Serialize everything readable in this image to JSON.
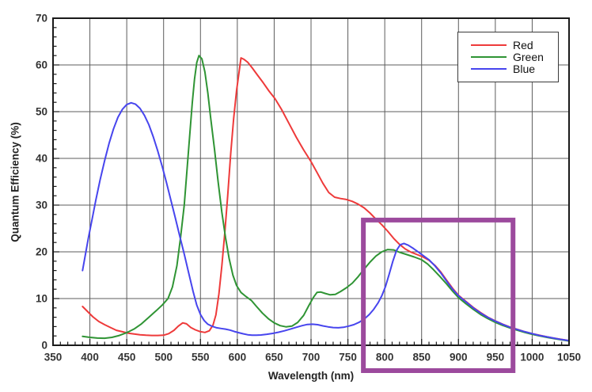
{
  "chart_data": {
    "type": "line",
    "title": "",
    "xlabel": "Wavelength (nm)",
    "ylabel": "Quantum Efficiency (%)",
    "xlim": [
      350,
      1050
    ],
    "ylim": [
      0,
      70
    ],
    "x_ticks": [
      350,
      400,
      450,
      500,
      550,
      600,
      650,
      700,
      750,
      800,
      850,
      900,
      950,
      1000,
      1050
    ],
    "y_ticks": [
      0,
      10,
      20,
      30,
      40,
      50,
      60,
      70
    ],
    "x_minor_tick_step": 10,
    "y_minor_tick_step": 2,
    "grid": "major gridlines on, dark gray",
    "legend": {
      "position": "top-right",
      "entries": [
        "Red",
        "Green",
        "Blue"
      ]
    },
    "series": [
      {
        "name": "Red",
        "color": "#ee3a3a",
        "points": [
          [
            390,
            8.3
          ],
          [
            397,
            7.2
          ],
          [
            404,
            6.1
          ],
          [
            412,
            5.1
          ],
          [
            420,
            4.4
          ],
          [
            428,
            3.8
          ],
          [
            436,
            3.2
          ],
          [
            444,
            2.9
          ],
          [
            452,
            2.6
          ],
          [
            460,
            2.4
          ],
          [
            468,
            2.25
          ],
          [
            476,
            2.15
          ],
          [
            484,
            2.1
          ],
          [
            492,
            2.1
          ],
          [
            500,
            2.15
          ],
          [
            507,
            2.5
          ],
          [
            514,
            3.2
          ],
          [
            520,
            4.1
          ],
          [
            526,
            4.8
          ],
          [
            531,
            4.6
          ],
          [
            537,
            3.8
          ],
          [
            543,
            3.3
          ],
          [
            549,
            2.95
          ],
          [
            556,
            2.75
          ],
          [
            562,
            3.1
          ],
          [
            567,
            4.3
          ],
          [
            571,
            6.5
          ],
          [
            575,
            11
          ],
          [
            579,
            17
          ],
          [
            583,
            24
          ],
          [
            587,
            32
          ],
          [
            591,
            41
          ],
          [
            595,
            48.5
          ],
          [
            599,
            54.5
          ],
          [
            602,
            58
          ],
          [
            605,
            61.5
          ],
          [
            609,
            61.2
          ],
          [
            614,
            60.6
          ],
          [
            620,
            59.4
          ],
          [
            627,
            57.9
          ],
          [
            635,
            56.2
          ],
          [
            643,
            54.4
          ],
          [
            651,
            52.8
          ],
          [
            660,
            50.5
          ],
          [
            670,
            47.5
          ],
          [
            680,
            44.5
          ],
          [
            690,
            41.8
          ],
          [
            700,
            39.3
          ],
          [
            708,
            37
          ],
          [
            716,
            34.7
          ],
          [
            724,
            32.7
          ],
          [
            732,
            31.7
          ],
          [
            740,
            31.4
          ],
          [
            748,
            31.2
          ],
          [
            756,
            30.8
          ],
          [
            764,
            30.2
          ],
          [
            772,
            29.4
          ],
          [
            780,
            28.3
          ],
          [
            788,
            27
          ],
          [
            796,
            25.8
          ],
          [
            804,
            24.4
          ],
          [
            812,
            22.9
          ],
          [
            820,
            21.6
          ],
          [
            828,
            20.6
          ],
          [
            836,
            19.9
          ],
          [
            844,
            19.4
          ],
          [
            852,
            18.9
          ],
          [
            860,
            18.2
          ],
          [
            868,
            17.1
          ],
          [
            876,
            15.7
          ],
          [
            884,
            13.9
          ],
          [
            892,
            12.2
          ],
          [
            900,
            10.7
          ],
          [
            910,
            9.4
          ],
          [
            920,
            8.1
          ],
          [
            930,
            7.0
          ],
          [
            940,
            6.0
          ],
          [
            950,
            5.2
          ],
          [
            960,
            4.5
          ],
          [
            970,
            3.9
          ],
          [
            980,
            3.4
          ],
          [
            990,
            2.9
          ],
          [
            1000,
            2.5
          ],
          [
            1010,
            2.15
          ],
          [
            1020,
            1.8
          ],
          [
            1030,
            1.5
          ],
          [
            1040,
            1.25
          ],
          [
            1050,
            1.0
          ]
        ]
      },
      {
        "name": "Green",
        "color": "#2f9434",
        "points": [
          [
            390,
            1.9
          ],
          [
            400,
            1.7
          ],
          [
            410,
            1.55
          ],
          [
            420,
            1.5
          ],
          [
            430,
            1.7
          ],
          [
            440,
            2.1
          ],
          [
            450,
            2.7
          ],
          [
            460,
            3.5
          ],
          [
            470,
            4.6
          ],
          [
            480,
            6.0
          ],
          [
            490,
            7.4
          ],
          [
            498,
            8.6
          ],
          [
            506,
            10
          ],
          [
            512,
            12.5
          ],
          [
            518,
            17
          ],
          [
            523,
            23
          ],
          [
            528,
            30
          ],
          [
            532,
            38
          ],
          [
            536,
            46
          ],
          [
            539,
            52
          ],
          [
            542,
            57
          ],
          [
            545,
            60.5
          ],
          [
            548,
            62
          ],
          [
            552,
            61.3
          ],
          [
            556,
            58.5
          ],
          [
            560,
            54
          ],
          [
            564,
            48.5
          ],
          [
            569,
            42
          ],
          [
            574,
            35
          ],
          [
            579,
            28.5
          ],
          [
            584,
            23
          ],
          [
            589,
            18.5
          ],
          [
            594,
            15
          ],
          [
            599,
            12.8
          ],
          [
            605,
            11.3
          ],
          [
            612,
            10.4
          ],
          [
            619,
            9.6
          ],
          [
            626,
            8.3
          ],
          [
            634,
            6.9
          ],
          [
            642,
            5.7
          ],
          [
            650,
            4.8
          ],
          [
            658,
            4.2
          ],
          [
            666,
            3.95
          ],
          [
            674,
            4.1
          ],
          [
            682,
            4.9
          ],
          [
            690,
            6.4
          ],
          [
            697,
            8.5
          ],
          [
            703,
            10.2
          ],
          [
            708,
            11.3
          ],
          [
            713,
            11.4
          ],
          [
            719,
            11.1
          ],
          [
            726,
            10.8
          ],
          [
            733,
            10.9
          ],
          [
            740,
            11.5
          ],
          [
            748,
            12.3
          ],
          [
            756,
            13.3
          ],
          [
            764,
            14.7
          ],
          [
            772,
            16.3
          ],
          [
            780,
            17.8
          ],
          [
            788,
            19.1
          ],
          [
            796,
            20.0
          ],
          [
            804,
            20.5
          ],
          [
            812,
            20.4
          ],
          [
            820,
            19.9
          ],
          [
            830,
            19.4
          ],
          [
            840,
            18.9
          ],
          [
            850,
            18.3
          ],
          [
            858,
            17.4
          ],
          [
            866,
            16.2
          ],
          [
            875,
            14.7
          ],
          [
            884,
            13.1
          ],
          [
            892,
            11.6
          ],
          [
            900,
            10.2
          ],
          [
            910,
            8.9
          ],
          [
            920,
            7.7
          ],
          [
            930,
            6.6
          ],
          [
            940,
            5.7
          ],
          [
            950,
            4.9
          ],
          [
            960,
            4.25
          ],
          [
            970,
            3.7
          ],
          [
            980,
            3.2
          ],
          [
            990,
            2.75
          ],
          [
            1000,
            2.35
          ],
          [
            1010,
            2.0
          ],
          [
            1020,
            1.7
          ],
          [
            1030,
            1.4
          ],
          [
            1040,
            1.15
          ],
          [
            1050,
            0.9
          ]
        ]
      },
      {
        "name": "Blue",
        "color": "#4745ee",
        "points": [
          [
            390,
            16
          ],
          [
            394,
            19.5
          ],
          [
            398,
            23
          ],
          [
            403,
            27
          ],
          [
            408,
            31
          ],
          [
            414,
            35.5
          ],
          [
            420,
            39.5
          ],
          [
            426,
            43.2
          ],
          [
            432,
            46.3
          ],
          [
            438,
            48.8
          ],
          [
            444,
            50.5
          ],
          [
            450,
            51.5
          ],
          [
            456,
            51.9
          ],
          [
            462,
            51.6
          ],
          [
            468,
            50.7
          ],
          [
            474,
            49.2
          ],
          [
            480,
            47.2
          ],
          [
            486,
            44.6
          ],
          [
            492,
            41.6
          ],
          [
            498,
            38.3
          ],
          [
            504,
            34.8
          ],
          [
            510,
            31
          ],
          [
            516,
            27.2
          ],
          [
            522,
            23.3
          ],
          [
            528,
            19.5
          ],
          [
            534,
            15.5
          ],
          [
            540,
            11.5
          ],
          [
            545,
            8.6
          ],
          [
            550,
            6.6
          ],
          [
            555,
            5.3
          ],
          [
            560,
            4.5
          ],
          [
            566,
            4.05
          ],
          [
            572,
            3.75
          ],
          [
            578,
            3.6
          ],
          [
            584,
            3.45
          ],
          [
            590,
            3.25
          ],
          [
            596,
            2.95
          ],
          [
            602,
            2.7
          ],
          [
            608,
            2.45
          ],
          [
            614,
            2.25
          ],
          [
            620,
            2.15
          ],
          [
            626,
            2.15
          ],
          [
            632,
            2.2
          ],
          [
            640,
            2.35
          ],
          [
            648,
            2.55
          ],
          [
            656,
            2.8
          ],
          [
            664,
            3.1
          ],
          [
            672,
            3.45
          ],
          [
            680,
            3.85
          ],
          [
            688,
            4.2
          ],
          [
            695,
            4.45
          ],
          [
            702,
            4.5
          ],
          [
            709,
            4.4
          ],
          [
            716,
            4.15
          ],
          [
            723,
            3.95
          ],
          [
            730,
            3.8
          ],
          [
            737,
            3.75
          ],
          [
            744,
            3.85
          ],
          [
            751,
            4.1
          ],
          [
            758,
            4.4
          ],
          [
            765,
            4.9
          ],
          [
            772,
            5.6
          ],
          [
            779,
            6.6
          ],
          [
            785,
            7.7
          ],
          [
            791,
            9.1
          ],
          [
            796,
            10.6
          ],
          [
            801,
            12.6
          ],
          [
            806,
            15.2
          ],
          [
            811,
            18
          ],
          [
            816,
            20.3
          ],
          [
            821,
            21.5
          ],
          [
            826,
            21.8
          ],
          [
            832,
            21.4
          ],
          [
            839,
            20.7
          ],
          [
            846,
            19.9
          ],
          [
            853,
            19.1
          ],
          [
            860,
            18.3
          ],
          [
            868,
            17.0
          ],
          [
            876,
            15.5
          ],
          [
            884,
            13.7
          ],
          [
            892,
            12.0
          ],
          [
            900,
            10.6
          ],
          [
            910,
            9.3
          ],
          [
            920,
            8.0
          ],
          [
            930,
            6.9
          ],
          [
            940,
            5.95
          ],
          [
            950,
            5.15
          ],
          [
            960,
            4.45
          ],
          [
            970,
            3.85
          ],
          [
            980,
            3.35
          ],
          [
            990,
            2.9
          ],
          [
            1000,
            2.5
          ],
          [
            1010,
            2.1
          ],
          [
            1020,
            1.8
          ],
          [
            1030,
            1.5
          ],
          [
            1040,
            1.22
          ],
          [
            1050,
            1.0
          ]
        ]
      }
    ],
    "annotation_box": {
      "shape": "rectangle",
      "color": "#9c4a9d",
      "x_range_nm": [
        771,
        974
      ],
      "y_top_percent": 26.8,
      "note": "highlight rectangle extends below the x-axis over the 800-950 tick labels"
    }
  },
  "style_colors": {
    "gridline": "#5c5c5c",
    "frame": "#1a1a1a",
    "tick_label": "#333333"
  }
}
